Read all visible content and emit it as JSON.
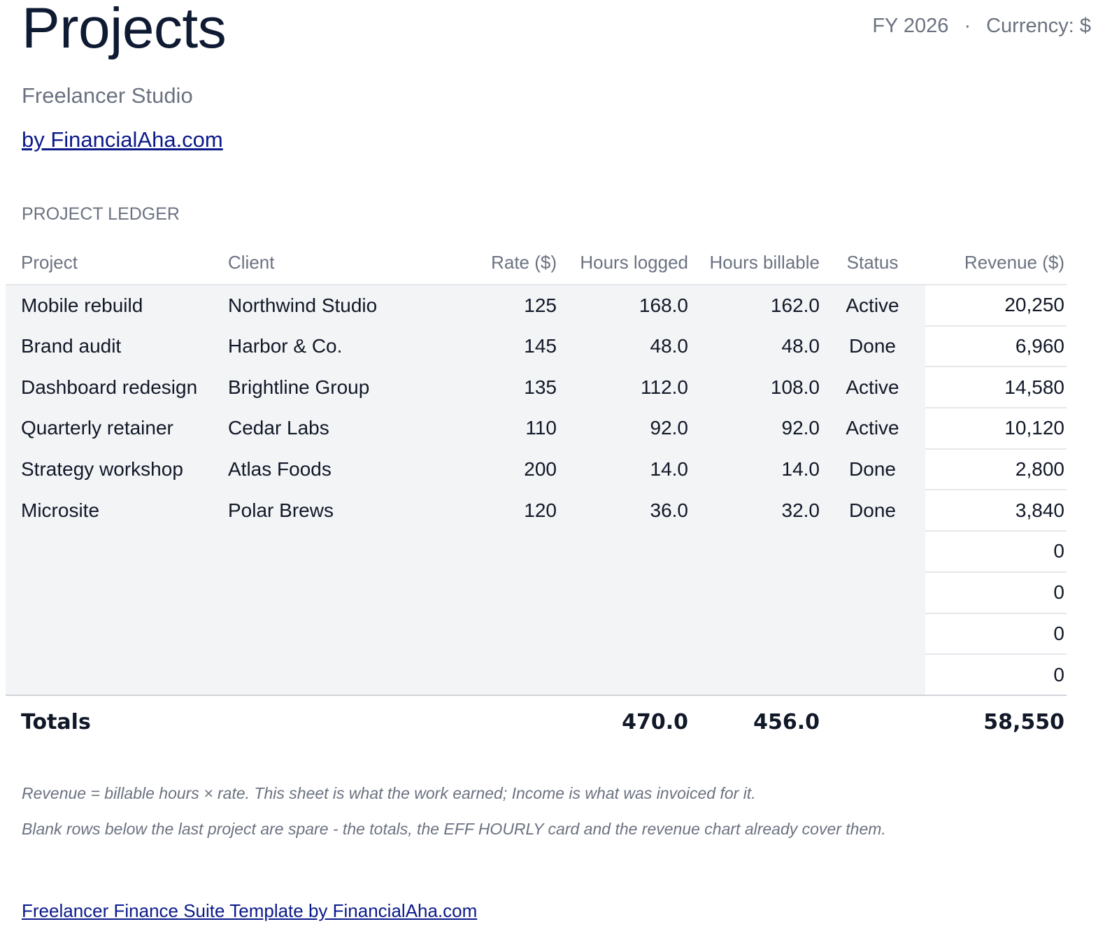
{
  "header": {
    "title": "Projects",
    "fiscal_year": "FY 2026",
    "separator": "·",
    "currency": "Currency: $",
    "subtitle": "Freelancer Studio",
    "byline": "by FinancialAha.com"
  },
  "ledger": {
    "section_label": "PROJECT LEDGER",
    "columns": {
      "project": "Project",
      "client": "Client",
      "rate": "Rate ($)",
      "hours_logged": "Hours logged",
      "hours_billable": "Hours billable",
      "status": "Status",
      "revenue": "Revenue ($)"
    },
    "rows": [
      {
        "project": "Mobile rebuild",
        "client": "Northwind Studio",
        "rate": "125",
        "logged": "168.0",
        "billable": "162.0",
        "status": "Active",
        "revenue": "20,250"
      },
      {
        "project": "Brand audit",
        "client": "Harbor & Co.",
        "rate": "145",
        "logged": "48.0",
        "billable": "48.0",
        "status": "Done",
        "revenue": "6,960"
      },
      {
        "project": "Dashboard redesign",
        "client": "Brightline Group",
        "rate": "135",
        "logged": "112.0",
        "billable": "108.0",
        "status": "Active",
        "revenue": "14,580"
      },
      {
        "project": "Quarterly retainer",
        "client": "Cedar Labs",
        "rate": "110",
        "logged": "92.0",
        "billable": "92.0",
        "status": "Active",
        "revenue": "10,120"
      },
      {
        "project": "Strategy workshop",
        "client": "Atlas Foods",
        "rate": "200",
        "logged": "14.0",
        "billable": "14.0",
        "status": "Done",
        "revenue": "2,800"
      },
      {
        "project": "Microsite",
        "client": "Polar Brews",
        "rate": "120",
        "logged": "36.0",
        "billable": "32.0",
        "status": "Done",
        "revenue": "3,840"
      },
      {
        "project": "",
        "client": "",
        "rate": "",
        "logged": "",
        "billable": "",
        "status": "",
        "revenue": "0"
      },
      {
        "project": "",
        "client": "",
        "rate": "",
        "logged": "",
        "billable": "",
        "status": "",
        "revenue": "0"
      },
      {
        "project": "",
        "client": "",
        "rate": "",
        "logged": "",
        "billable": "",
        "status": "",
        "revenue": "0"
      },
      {
        "project": "",
        "client": "",
        "rate": "",
        "logged": "",
        "billable": "",
        "status": "",
        "revenue": "0"
      }
    ],
    "totals": {
      "label": "Totals",
      "hours_logged": "470.0",
      "hours_billable": "456.0",
      "revenue": "58,550"
    }
  },
  "notes": {
    "line1": "Revenue = billable hours × rate. This sheet is what the work earned; Income is what was invoiced for it.",
    "line2": "Blank rows below the last project are spare - the totals, the EFF HOURLY card and the revenue chart already cover them."
  },
  "footer": {
    "link_text": "Freelancer Finance Suite Template by FinancialAha.com"
  }
}
